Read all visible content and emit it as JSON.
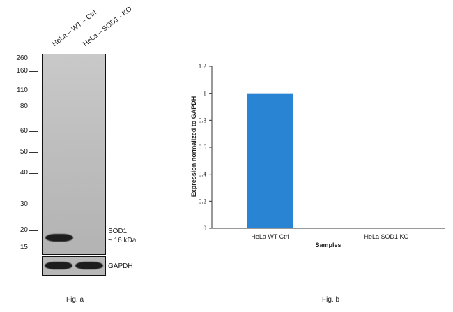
{
  "fig_a": {
    "lanes": [
      "HeLa – WT – Ctrl",
      "HeLa – SOD1 - KO"
    ],
    "markers": [
      "260",
      "160",
      "110",
      "80",
      "60",
      "50",
      "40",
      "30",
      "20",
      "15"
    ],
    "band_label": "SOD1",
    "band_size": "~ 16 kDa",
    "loading_control": "GAPDH",
    "caption": "Fig. a"
  },
  "fig_b": {
    "caption": "Fig. b"
  },
  "chart_data": {
    "type": "bar",
    "categories": [
      "HeLa WT Ctrl",
      "HeLa SOD1 KO"
    ],
    "values": [
      1.0,
      0.0
    ],
    "xlabel": "Samples",
    "ylabel": "Expression  normalized to GAPDH",
    "ylim": [
      0,
      1.2
    ],
    "yticks": [
      0,
      0.2,
      0.4,
      0.6,
      0.8,
      1,
      1.2
    ],
    "bar_color": "#2a84d4",
    "grid": false,
    "legend": "none"
  }
}
